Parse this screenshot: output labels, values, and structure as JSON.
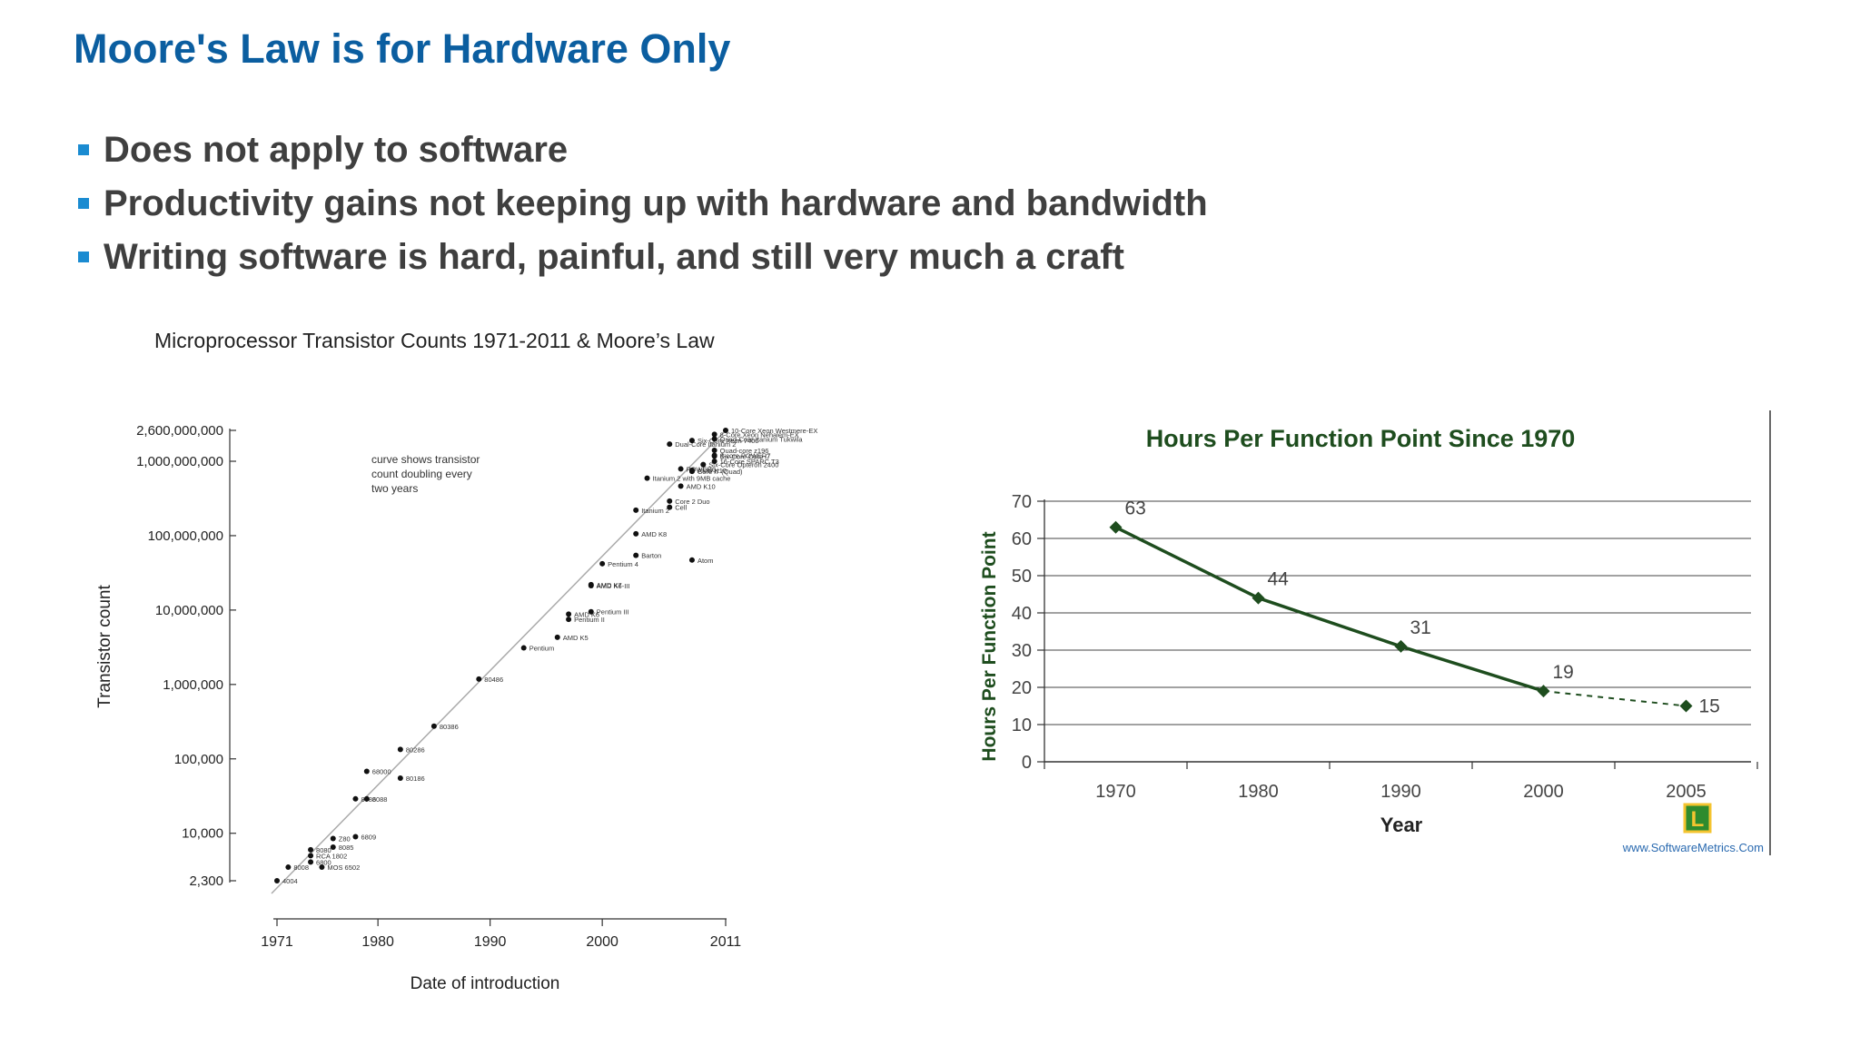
{
  "slide": {
    "title": "Moore's Law is for Hardware Only",
    "bullets": [
      "Does not apply to software",
      "Productivity gains not keeping up with hardware and bandwidth",
      "Writing software is hard, painful, and still very much a craft"
    ]
  },
  "colors": {
    "title": "#0b5ea0",
    "bullet_text": "#3f3f3f",
    "bullet_marker": "#1a8bd1",
    "line_green": "#1e4d1e",
    "title_green": "#1e4d1e"
  },
  "chart_data": [
    {
      "type": "scatter",
      "title": "Microprocessor Transistor Counts 1971-2011 & Moore’s Law",
      "xlabel": "Date of introduction",
      "ylabel": "Transistor count",
      "yscale": "log",
      "xlim": [
        1971,
        2011
      ],
      "ylim": [
        2300,
        2600000000
      ],
      "xticks": [
        1971,
        1980,
        1990,
        2000,
        2011
      ],
      "yticks": [
        {
          "value": 2300,
          "label": "2,300"
        },
        {
          "value": 10000,
          "label": "10,000"
        },
        {
          "value": 100000,
          "label": "100,000"
        },
        {
          "value": 1000000,
          "label": "1,000,000"
        },
        {
          "value": 10000000,
          "label": "10,000,000"
        },
        {
          "value": 100000000,
          "label": "100,000,000"
        },
        {
          "value": 1000000000,
          "label": "1,000,000,000"
        },
        {
          "value": 2600000000,
          "label": "2,600,000,000"
        }
      ],
      "trend_line": {
        "x": [
          1971,
          2011
        ],
        "y": [
          2300,
          2600000000
        ]
      },
      "annotation": "curve shows transistor count doubling every two years",
      "points": [
        {
          "label": "4004",
          "x": 1971,
          "y": 2300
        },
        {
          "label": "8008",
          "x": 1972,
          "y": 3500
        },
        {
          "label": "8080",
          "x": 1974,
          "y": 6000
        },
        {
          "label": "RCA 1802",
          "x": 1974,
          "y": 5000
        },
        {
          "label": "MOS 6502",
          "x": 1975,
          "y": 3510
        },
        {
          "label": "6800",
          "x": 1974,
          "y": 4100
        },
        {
          "label": "Z80",
          "x": 1976,
          "y": 8500
        },
        {
          "label": "8085",
          "x": 1976,
          "y": 6500
        },
        {
          "label": "6809",
          "x": 1978,
          "y": 9000
        },
        {
          "label": "8086",
          "x": 1978,
          "y": 29000
        },
        {
          "label": "8088",
          "x": 1979,
          "y": 29000
        },
        {
          "label": "68000",
          "x": 1979,
          "y": 68000
        },
        {
          "label": "80186",
          "x": 1982,
          "y": 55000
        },
        {
          "label": "80286",
          "x": 1982,
          "y": 134000
        },
        {
          "label": "80386",
          "x": 1985,
          "y": 275000
        },
        {
          "label": "80486",
          "x": 1989,
          "y": 1180000
        },
        {
          "label": "Pentium",
          "x": 1993,
          "y": 3100000
        },
        {
          "label": "AMD K5",
          "x": 1996,
          "y": 4300000
        },
        {
          "label": "Pentium II",
          "x": 1997,
          "y": 7500000
        },
        {
          "label": "AMD K6",
          "x": 1997,
          "y": 8800000
        },
        {
          "label": "Pentium III",
          "x": 1999,
          "y": 9500000
        },
        {
          "label": "AMD K6-III",
          "x": 1999,
          "y": 21300000
        },
        {
          "label": "AMD K7",
          "x": 1999,
          "y": 22000000
        },
        {
          "label": "Pentium 4",
          "x": 2000,
          "y": 42000000
        },
        {
          "label": "Barton",
          "x": 2003,
          "y": 54300000
        },
        {
          "label": "AMD K8",
          "x": 2003,
          "y": 105900000
        },
        {
          "label": "Itanium 2",
          "x": 2003,
          "y": 220000000
        },
        {
          "label": "Atom",
          "x": 2008,
          "y": 47000000
        },
        {
          "label": "Cell",
          "x": 2006,
          "y": 241000000
        },
        {
          "label": "Core 2 Duo",
          "x": 2006,
          "y": 291000000
        },
        {
          "label": "AMD K10",
          "x": 2007,
          "y": 463000000
        },
        {
          "label": "Itanium 2 with 9MB cache",
          "x": 2004,
          "y": 592000000
        },
        {
          "label": "Core i7 (Quad)",
          "x": 2008,
          "y": 731000000
        },
        {
          "label": "POWER6",
          "x": 2007,
          "y": 789000000
        },
        {
          "label": "AMD K10",
          "x": 2008,
          "y": 758000000
        },
        {
          "label": "Six-Core Opteron 2400",
          "x": 2009,
          "y": 904000000
        },
        {
          "label": "Dual-Core Itanium 2",
          "x": 2006,
          "y": 1700000000
        },
        {
          "label": "Six-Core Xeon 7400",
          "x": 2008,
          "y": 1900000000
        },
        {
          "label": "8-Core Xeon Nehalem-EX",
          "x": 2010,
          "y": 2300000000
        },
        {
          "label": "Quad-Core Itanium Tukwila",
          "x": 2010,
          "y": 2000000000
        },
        {
          "label": "Quad-core z196",
          "x": 2010,
          "y": 1400000000
        },
        {
          "label": "8-core POWER7",
          "x": 2010,
          "y": 1200000000
        },
        {
          "label": "Six-Core Core i7",
          "x": 2010,
          "y": 1170000000
        },
        {
          "label": "16-Core SPARC T3",
          "x": 2010,
          "y": 1000000000
        },
        {
          "label": "10-Core Xeon Westmere-EX",
          "x": 2011,
          "y": 2600000000
        }
      ]
    },
    {
      "type": "line",
      "title": "Hours Per Function Point Since 1970",
      "xlabel": "Year",
      "ylabel": "Hours Per Function Point",
      "categories": [
        "1970",
        "1980",
        "1990",
        "2000",
        "2005"
      ],
      "values": [
        63,
        44,
        31,
        19,
        15
      ],
      "ylim": [
        0,
        70
      ],
      "yticks": [
        0,
        10,
        20,
        30,
        40,
        50,
        60,
        70
      ],
      "gridlines": true,
      "projected_segment": [
        "2000",
        "2005"
      ],
      "watermark": "www.SoftwareMetrics.Com",
      "logo_letter": "L"
    }
  ]
}
